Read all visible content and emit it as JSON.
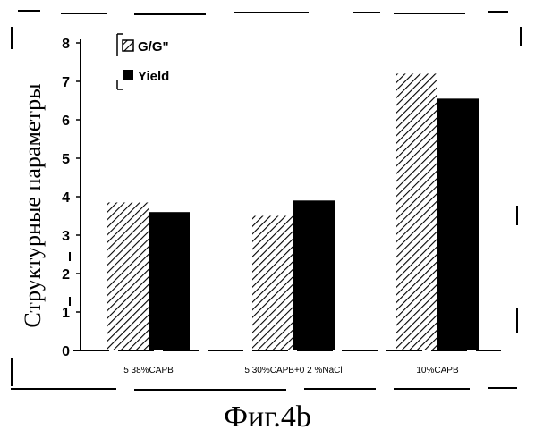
{
  "caption": "Фиг.4b",
  "chart_data": {
    "type": "bar",
    "title": "",
    "xlabel": "",
    "ylabel": "Структурные параметры",
    "ylim": [
      0,
      8
    ],
    "yticks": [
      0,
      1,
      2,
      3,
      4,
      5,
      6,
      7,
      8
    ],
    "categories": [
      "5 38%CAPB",
      "5 30%CAPB+0 2 %NaCl",
      "10%CAPB"
    ],
    "series": [
      {
        "name": "G/G\"",
        "values": [
          3.85,
          3.5,
          7.2
        ],
        "pattern": "hatched"
      },
      {
        "name": "Yield",
        "values": [
          3.6,
          3.9,
          6.55
        ],
        "color": "#000000"
      }
    ],
    "legend_position": "top-left",
    "grid": false
  }
}
